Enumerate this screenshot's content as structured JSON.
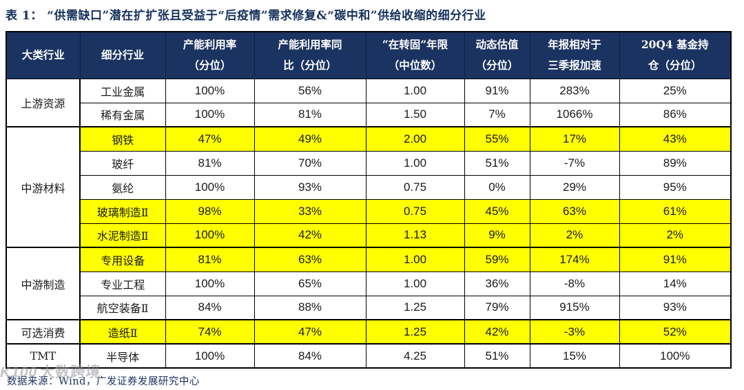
{
  "title": "表 1：  “供需缺口”潜在扩扩张且受益于“后疫情”需求修复&“碳中和”供给收缩的细分行业",
  "colors": {
    "header_bg": "#1b3361",
    "header_text": "#ffffff",
    "title_text": "#14305c",
    "highlight": "#ffff00",
    "border": "#000000",
    "source_text": "#1b3361"
  },
  "table": {
    "headers": [
      "大类行业",
      "细分行业",
      "产能利用率\n（分位）",
      "产能利用率同\n比（分位）",
      "“在转固”年限\n（中位数）",
      "动态估值\n（分位）",
      "年报相对于\n三季报加速",
      "20Q4 基金持\n仓（分位）"
    ],
    "groups": [
      {
        "name": "上游资源",
        "rows": [
          {
            "industry": "工业金属",
            "highlight": false,
            "values": [
              "100%",
              "56%",
              "1.00",
              "91%",
              "283%",
              "25%"
            ]
          },
          {
            "industry": "稀有金属",
            "highlight": false,
            "values": [
              "100%",
              "81%",
              "1.50",
              "7%",
              "1066%",
              "86%"
            ]
          }
        ]
      },
      {
        "name": "中游材料",
        "rows": [
          {
            "industry": "钢铁",
            "highlight": true,
            "values": [
              "47%",
              "49%",
              "2.00",
              "55%",
              "17%",
              "43%"
            ]
          },
          {
            "industry": "玻纤",
            "highlight": false,
            "values": [
              "81%",
              "70%",
              "1.00",
              "51%",
              "-7%",
              "89%"
            ]
          },
          {
            "industry": "氨纶",
            "highlight": false,
            "values": [
              "100%",
              "93%",
              "0.75",
              "0%",
              "29%",
              "95%"
            ]
          },
          {
            "industry": "玻璃制造Ⅱ",
            "highlight": true,
            "values": [
              "98%",
              "33%",
              "0.75",
              "45%",
              "63%",
              "61%"
            ]
          },
          {
            "industry": "水泥制造Ⅱ",
            "highlight": true,
            "values": [
              "100%",
              "42%",
              "1.13",
              "9%",
              "2%",
              "2%"
            ]
          }
        ]
      },
      {
        "name": "中游制造",
        "rows": [
          {
            "industry": "专用设备",
            "highlight": true,
            "values": [
              "81%",
              "63%",
              "1.00",
              "59%",
              "174%",
              "91%"
            ]
          },
          {
            "industry": "专业工程",
            "highlight": false,
            "values": [
              "100%",
              "65%",
              "1.00",
              "36%",
              "-8%",
              "14%"
            ]
          },
          {
            "industry": "航空装备Ⅱ",
            "highlight": false,
            "values": [
              "84%",
              "88%",
              "1.25",
              "79%",
              "915%",
              "93%"
            ]
          }
        ]
      },
      {
        "name": "可选消费",
        "rows": [
          {
            "industry": "造纸Ⅱ",
            "highlight": true,
            "values": [
              "74%",
              "47%",
              "1.25",
              "42%",
              "-3%",
              "52%"
            ]
          }
        ]
      },
      {
        "name": "TMT",
        "rows": [
          {
            "industry": "半导体",
            "highlight": false,
            "values": [
              "100%",
              "84%",
              "4.25",
              "51%",
              "15%",
              "100%"
            ]
          }
        ]
      }
    ]
  },
  "footer": {
    "source": "数据来源：Wind，广发证券发展研究中心"
  },
  "watermark": {
    "logo": "K100",
    "text": "大数跨境"
  }
}
